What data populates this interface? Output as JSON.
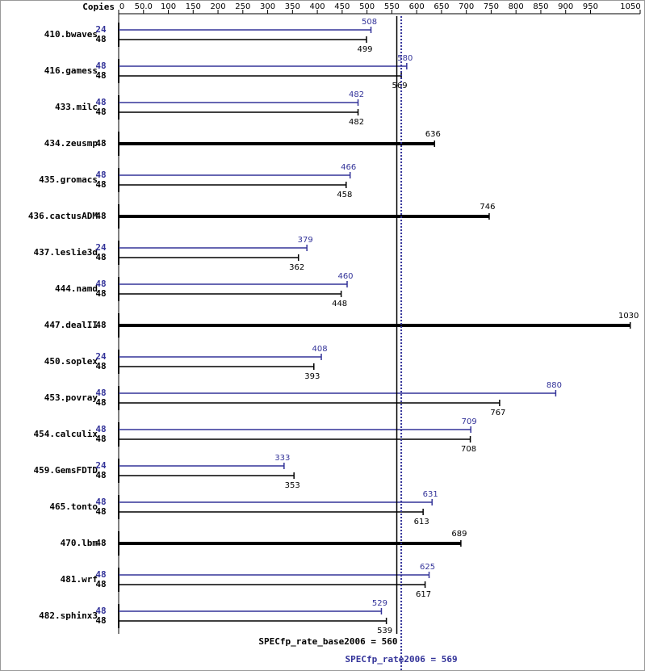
{
  "chart_data": {
    "type": "bar",
    "copies_header": "Copies",
    "categories": [
      "410.bwaves",
      "416.gamess",
      "433.milc",
      "434.zeusmp",
      "435.gromacs",
      "436.cactusADM",
      "437.leslie3d",
      "444.namd",
      "447.dealII",
      "450.soplex",
      "453.povray",
      "454.calculix",
      "459.GemsFDTD",
      "465.tonto",
      "470.lbm",
      "481.wrf",
      "482.sphinx3"
    ],
    "series": [
      {
        "color": "#333399",
        "copies": [
          24,
          48,
          48,
          null,
          48,
          null,
          24,
          48,
          null,
          24,
          48,
          48,
          24,
          48,
          null,
          48,
          48
        ],
        "values": [
          508,
          580,
          482,
          null,
          466,
          null,
          379,
          460,
          null,
          408,
          880,
          709,
          333,
          631,
          null,
          625,
          529
        ]
      },
      {
        "color": "#000000",
        "copies": [
          48,
          48,
          48,
          48,
          48,
          48,
          48,
          48,
          48,
          48,
          48,
          48,
          48,
          48,
          48,
          48,
          48
        ],
        "values": [
          499,
          569,
          482,
          636,
          458,
          746,
          362,
          448,
          1030,
          393,
          767,
          708,
          353,
          613,
          689,
          617,
          539
        ]
      }
    ],
    "xlim": [
      0,
      1050
    ],
    "xticks": [
      0,
      {
        "value": 50,
        "label": "50.0"
      },
      100,
      150,
      200,
      250,
      300,
      350,
      400,
      450,
      500,
      550,
      600,
      650,
      700,
      750,
      800,
      850,
      900,
      950,
      1050
    ],
    "reference_lines": [
      {
        "label": "SPECfp_rate_base2006 = 560",
        "value": 560,
        "color": "#000000",
        "style": "solid"
      },
      {
        "label": "SPECfp_rate2006 = 569",
        "value": 569,
        "color": "#333399",
        "style": "dotted"
      }
    ]
  }
}
